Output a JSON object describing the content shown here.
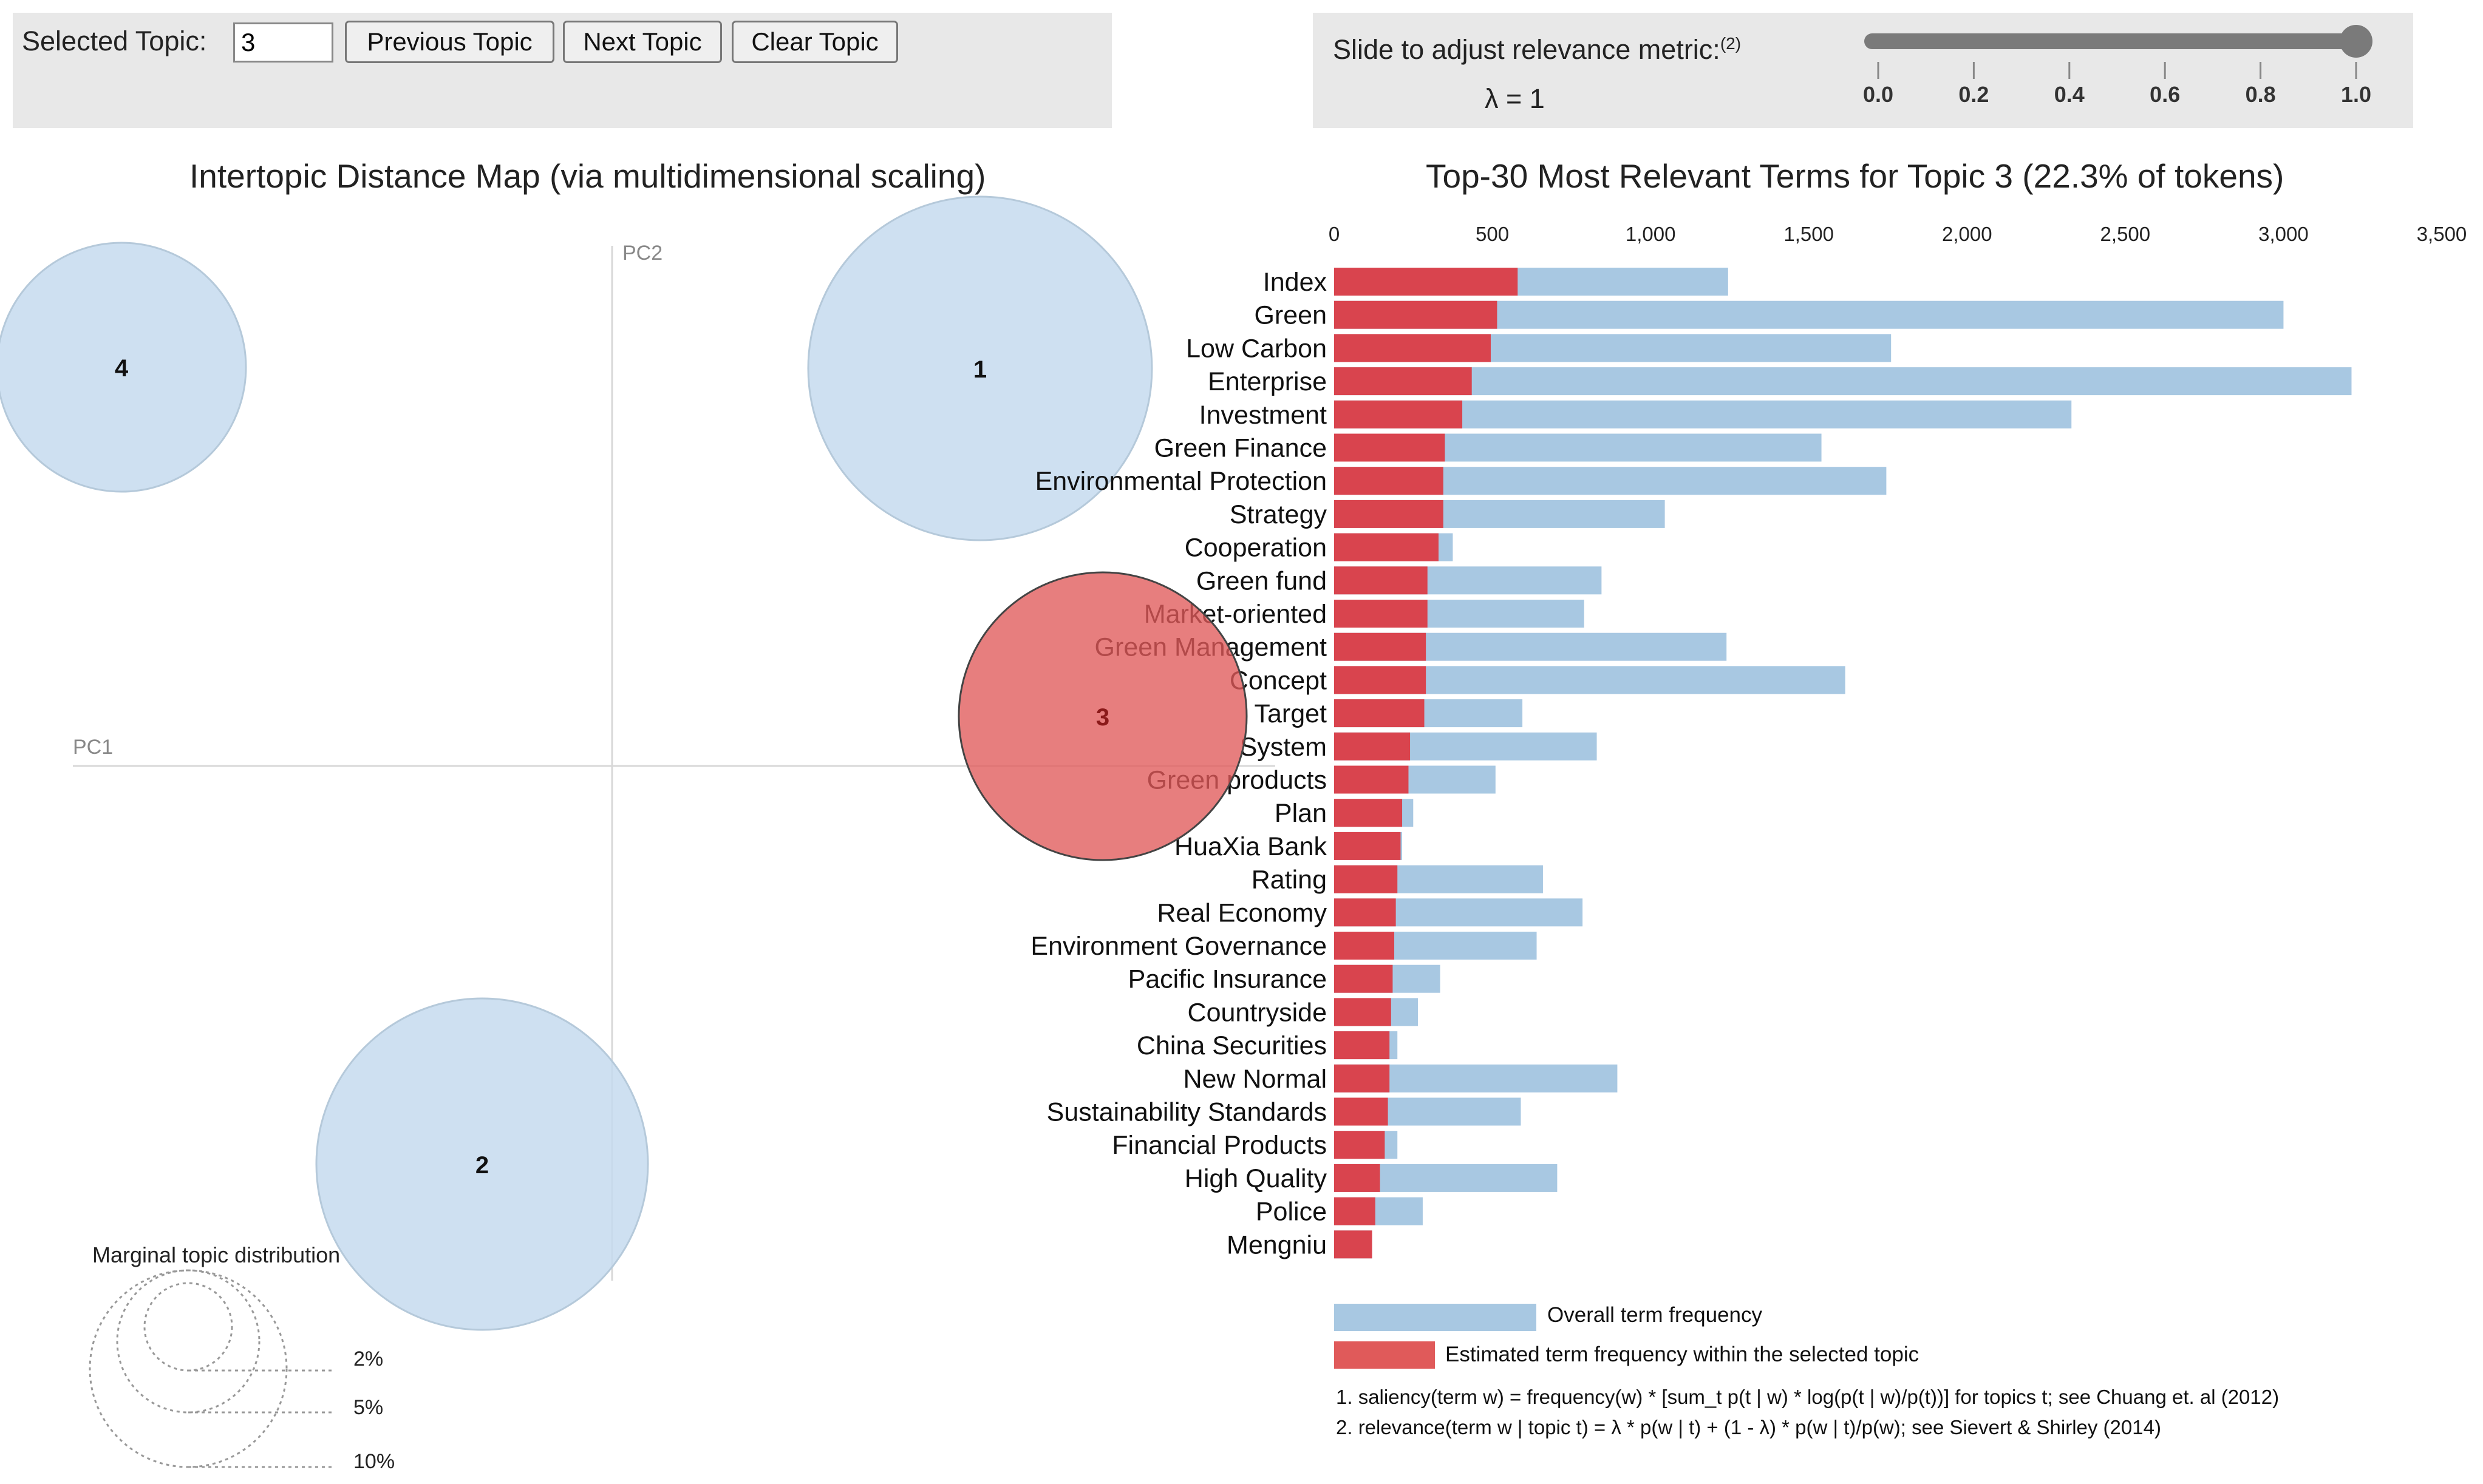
{
  "controls": {
    "selected_topic_label": "Selected Topic:",
    "selected_topic_value": "3",
    "prev_label": "Previous Topic",
    "next_label": "Next Topic",
    "clear_label": "Clear Topic",
    "slider_label": "Slide to adjust relevance metric:",
    "slider_footnote": "(2)",
    "lambda_label": "λ = 1",
    "lambda_value": 1,
    "slider_ticks": [
      "0.0",
      "0.2",
      "0.4",
      "0.6",
      "0.8",
      "1.0"
    ]
  },
  "map": {
    "title": "Intertopic Distance Map (via multidimensional scaling)",
    "pc1_label": "PC1",
    "pc2_label": "PC2",
    "topics": [
      {
        "id": "1",
        "selected": false
      },
      {
        "id": "2",
        "selected": false
      },
      {
        "id": "3",
        "selected": true
      },
      {
        "id": "4",
        "selected": false
      }
    ],
    "legend_title": "Marginal topic distribution",
    "legend_items": [
      "2%",
      "5%",
      "10%"
    ]
  },
  "chart_data": {
    "type": "bar",
    "orientation": "horizontal",
    "title": "Top-30 Most Relevant Terms for Topic 3 (22.3% of tokens)",
    "xlim": [
      0,
      3500
    ],
    "x_ticks": [
      "0",
      "500",
      "1,000",
      "1,500",
      "2,000",
      "2,500",
      "3,000",
      "3,500"
    ],
    "x_tick_values": [
      0,
      500,
      1000,
      1500,
      2000,
      2500,
      3000,
      3500
    ],
    "categories": [
      "Index",
      "Green",
      "Low Carbon",
      "Enterprise",
      "Investment",
      "Green Finance",
      "Environmental Protection",
      "Strategy",
      "Cooperation",
      "Green fund",
      "Market-oriented",
      "Green Management",
      "Concept",
      "Target",
      "System",
      "Green products",
      "Plan",
      "HuaXia Bank",
      "Rating",
      "Real Economy",
      "Environment Governance",
      "Pacific Insurance",
      "Countryside",
      "China Securities",
      "New Normal",
      "Sustainability Standards",
      "Financial Products",
      "High Quality",
      "Police",
      "Mengniu"
    ],
    "series": [
      {
        "name": "Overall term frequency",
        "color": "#a8c8e2",
        "values": [
          1245,
          3000,
          1760,
          3215,
          2330,
          1540,
          1745,
          1045,
          375,
          845,
          790,
          1240,
          1615,
          595,
          830,
          510,
          250,
          215,
          660,
          785,
          640,
          335,
          265,
          200,
          895,
          590,
          200,
          705,
          280,
          120
        ]
      },
      {
        "name": "Estimated term frequency within the selected topic",
        "color": "#d9444e",
        "values": [
          580,
          515,
          495,
          435,
          405,
          350,
          345,
          345,
          330,
          295,
          295,
          290,
          290,
          285,
          240,
          235,
          215,
          210,
          200,
          195,
          190,
          185,
          180,
          175,
          175,
          170,
          160,
          145,
          130,
          120
        ]
      }
    ]
  },
  "legend": {
    "overall_label": "Overall term frequency",
    "topic_label": "Estimated term frequency within the selected topic"
  },
  "footnotes": {
    "note1": "1. saliency(term w) = frequency(w) * [sum_t p(t | w) * log(p(t | w)/p(t))] for topics t; see Chuang et. al (2012)",
    "note2": "2. relevance(term w | topic t) = λ * p(w | t) + (1 - λ) * p(w | t)/p(w); see Sievert & Shirley (2014)"
  },
  "colors": {
    "topic_circle_fill": "#c6dbef",
    "topic_circle_stroke": "#9ebad4",
    "selected_topic_fill": "#e05a5a",
    "overall_bar": "#a8c8e2",
    "topic_bar": "#d9444e",
    "panel_bg": "#e8e8e8"
  }
}
